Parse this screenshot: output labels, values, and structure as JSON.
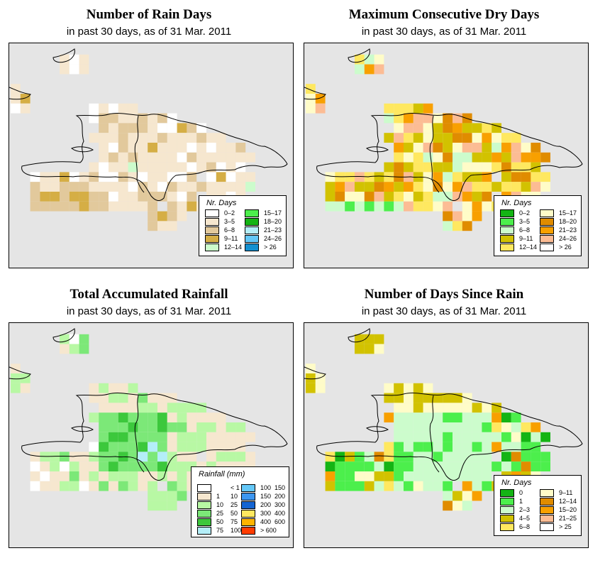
{
  "colors": {
    "background": "#e5e5e5",
    "outline": "#000000",
    "nodata": "#ffffff"
  },
  "panels": [
    {
      "id": "rain-days",
      "title": "Number of Rain Days",
      "subtitle": "in past 30 days, as of  31 Mar. 2011",
      "legend_title": "Nr. Days",
      "legend": [
        {
          "label": "0–2",
          "color": "#ffffff"
        },
        {
          "label": "3–5",
          "color": "#f6e7cf"
        },
        {
          "label": "6–8",
          "color": "#e2c99c"
        },
        {
          "label": "9–11",
          "color": "#d5ae45"
        },
        {
          "label": "12–14",
          "color": "#ccfccc"
        },
        {
          "label": "15–17",
          "color": "#4cef4c"
        },
        {
          "label": "18–20",
          "color": "#14b414"
        },
        {
          "label": "21–23",
          "color": "#b4eef8"
        },
        {
          "label": "24–26",
          "color": "#64c8f8"
        },
        {
          "label": "> 26",
          "color": "#1490d0"
        }
      ]
    },
    {
      "id": "dry-days",
      "title": "Maximum Consecutive Dry Days",
      "subtitle": "in past 30 days, as of  31 Mar. 2011",
      "legend_title": "Nr. Days",
      "legend": [
        {
          "label": "0–2",
          "color": "#14b414"
        },
        {
          "label": "3–5",
          "color": "#4cef4c"
        },
        {
          "label": "6–8",
          "color": "#ccfccc"
        },
        {
          "label": "9–11",
          "color": "#d2c200"
        },
        {
          "label": "12–14",
          "color": "#ffe860"
        },
        {
          "label": "15–17",
          "color": "#fffcc8"
        },
        {
          "label": "18–20",
          "color": "#e08c00"
        },
        {
          "label": "21–23",
          "color": "#f8a000"
        },
        {
          "label": "24–26",
          "color": "#fcbc94"
        },
        {
          "label": "> 26",
          "color": "#ffffff"
        }
      ]
    },
    {
      "id": "rainfall",
      "title": "Total Accumulated Rainfall",
      "subtitle": "in past 30 days, as of  31 Mar. 2011",
      "legend_title": "Rainfall (mm)",
      "legend": [
        {
          "from": "",
          "to": "< 1",
          "color": "#ffffff"
        },
        {
          "from": "1",
          "to": "10",
          "color": "#f6e7cf"
        },
        {
          "from": "10",
          "to": "25",
          "color": "#b8f8a4"
        },
        {
          "from": "25",
          "to": "50",
          "color": "#7ce878"
        },
        {
          "from": "50",
          "to": "75",
          "color": "#3cc83c"
        },
        {
          "from": "75",
          "to": "100",
          "color": "#b4eef8"
        },
        {
          "from": "100",
          "to": "150",
          "color": "#64c8f8"
        },
        {
          "from": "150",
          "to": "200",
          "color": "#3c96f0"
        },
        {
          "from": "200",
          "to": "300",
          "color": "#1464d2"
        },
        {
          "from": "300",
          "to": "400",
          "color": "#ffe860"
        },
        {
          "from": "400",
          "to": "600",
          "color": "#ffb400"
        },
        {
          "from": "",
          "to": "> 600",
          "color": "#ff3c00"
        }
      ]
    },
    {
      "id": "since-rain",
      "title": "Number of Days Since Rain",
      "subtitle": "in past 30 days, as of  31 Mar. 2011",
      "legend_title": "Nr. Days",
      "legend": [
        {
          "label": "0",
          "color": "#14b414"
        },
        {
          "label": "1",
          "color": "#4cef4c"
        },
        {
          "label": "2–3",
          "color": "#ccfccc"
        },
        {
          "label": "4–5",
          "color": "#d2c200"
        },
        {
          "label": "6–8",
          "color": "#ffe860"
        },
        {
          "label": "9–11",
          "color": "#fffcc8"
        },
        {
          "label": "12–14",
          "color": "#e08c00"
        },
        {
          "label": "15–20",
          "color": "#f8a000"
        },
        {
          "label": "21–25",
          "color": "#fcbc94"
        },
        {
          "label": "> 25",
          "color": "#ffffff"
        }
      ]
    }
  ]
}
